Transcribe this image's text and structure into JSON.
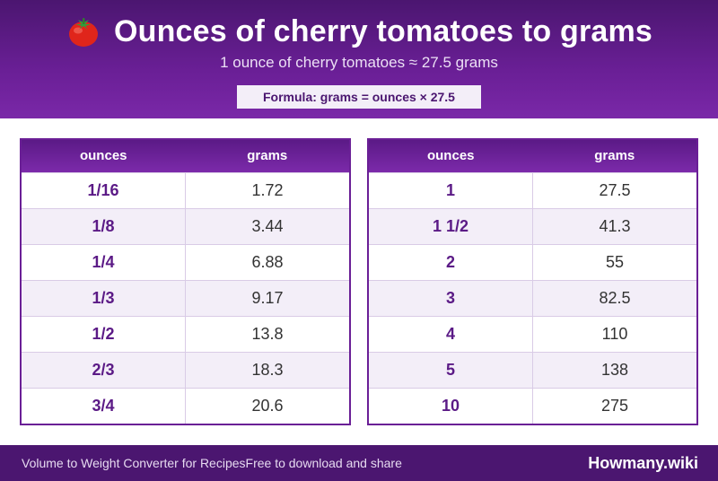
{
  "header": {
    "icon": "tomato-icon",
    "title": "Ounces of cherry tomatoes to grams",
    "subtitle": "1 ounce of cherry tomatoes ≈ 27.5 grams",
    "formula": "Formula: grams = ounces × 27.5"
  },
  "colors": {
    "header_dark": "#4b1670",
    "header_light": "#7a28a8",
    "accent_text": "#5b1a86",
    "row_alt": "#f3eef8",
    "tomato": "#e0251b"
  },
  "tables": [
    {
      "headers": [
        "ounces",
        "grams"
      ],
      "rows": [
        {
          "ounces": "1/16",
          "grams": "1.72"
        },
        {
          "ounces": "1/8",
          "grams": "3.44"
        },
        {
          "ounces": "1/4",
          "grams": "6.88"
        },
        {
          "ounces": "1/3",
          "grams": "9.17"
        },
        {
          "ounces": "1/2",
          "grams": "13.8"
        },
        {
          "ounces": "2/3",
          "grams": "18.3"
        },
        {
          "ounces": "3/4",
          "grams": "20.6"
        }
      ]
    },
    {
      "headers": [
        "ounces",
        "grams"
      ],
      "rows": [
        {
          "ounces": "1",
          "grams": "27.5"
        },
        {
          "ounces": "1 1/2",
          "grams": "41.3"
        },
        {
          "ounces": "2",
          "grams": "55"
        },
        {
          "ounces": "3",
          "grams": "82.5"
        },
        {
          "ounces": "4",
          "grams": "110"
        },
        {
          "ounces": "5",
          "grams": "138"
        },
        {
          "ounces": "10",
          "grams": "275"
        }
      ]
    }
  ],
  "footer": {
    "left_text_1": "Volume to Weight Converter for Recipes",
    "left_text_2": "Free to download and share",
    "brand": "Howmany.wiki"
  }
}
